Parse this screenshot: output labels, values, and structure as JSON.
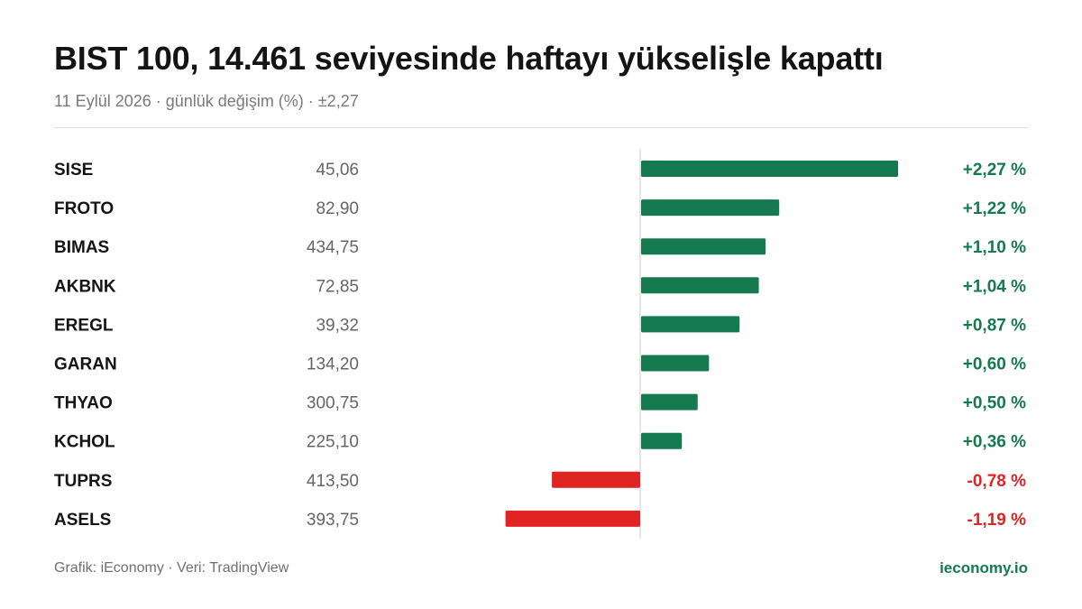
{
  "title": "BIST 100, 14.461 seviyesinde haftayı yükselişle kapattı",
  "subtitle": "11 Eylül 2026 · günlük değişim (%) · ±2,27",
  "footer": {
    "source": "Grafik: iEconomy · Veri: TradingView",
    "brand": "ieconomy.io"
  },
  "colors": {
    "positive": "#157a4f",
    "negative": "#e02424",
    "brand": "#157a4f",
    "axis": "#cccccc"
  },
  "chart_data": {
    "type": "bar",
    "orientation": "horizontal",
    "xlim": [
      -2.27,
      2.27
    ],
    "categories": [
      "SISE",
      "FROTO",
      "BIMAS",
      "AKBNK",
      "EREGL",
      "GARAN",
      "THYAO",
      "KCHOL",
      "TUPRS",
      "ASELS"
    ],
    "prices": [
      "45,06",
      "82,90",
      "434,75",
      "72,85",
      "39,32",
      "134,20",
      "300,75",
      "225,10",
      "413,50",
      "393,75"
    ],
    "values": [
      2.27,
      1.22,
      1.1,
      1.04,
      0.87,
      0.6,
      0.5,
      0.36,
      -0.78,
      -1.19
    ],
    "value_labels": [
      "+2,27 %",
      "+1,22 %",
      "+1,10 %",
      "+1,04 %",
      "+0,87 %",
      "+0,60 %",
      "+0,50 %",
      "+0,36 %",
      "-0,78 %",
      "-1,19 %"
    ]
  }
}
